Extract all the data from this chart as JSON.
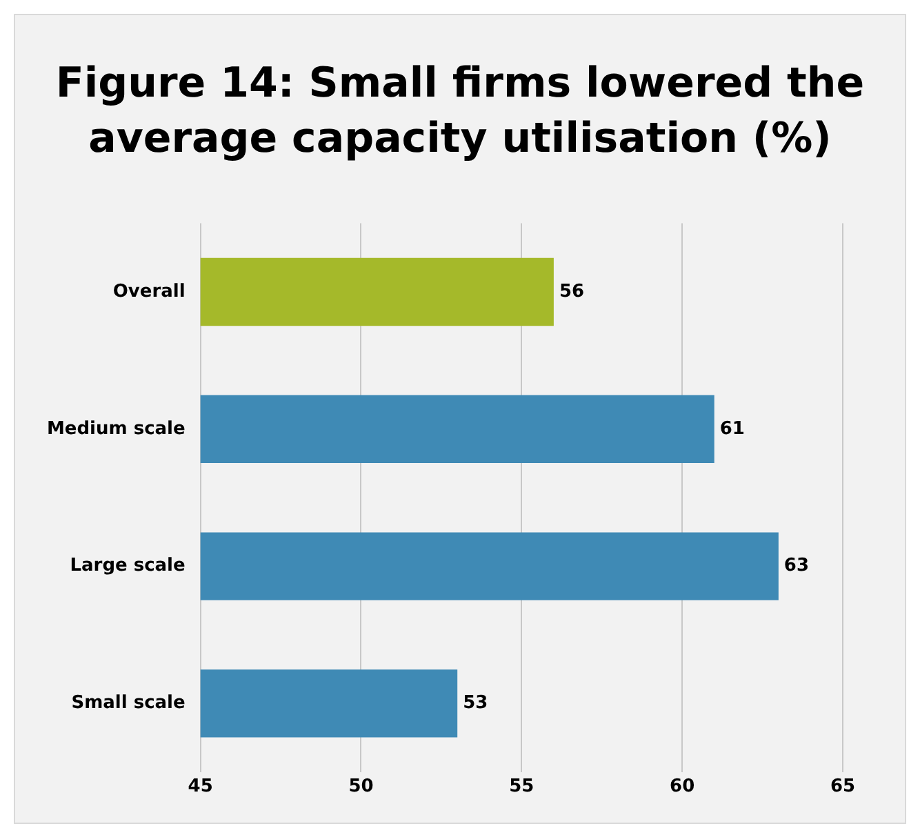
{
  "chart_data": {
    "type": "bar",
    "orientation": "horizontal",
    "title": "Figure 14: Small firms lowered the average capacity utilisation (%)",
    "categories": [
      "Overall",
      "Medium scale",
      "Large scale",
      "Small scale"
    ],
    "values": [
      56,
      61,
      63,
      53
    ],
    "colors": [
      "#a5b92a",
      "#3f8ab5",
      "#3f8ab5",
      "#3f8ab5"
    ],
    "xlim": [
      45,
      65
    ],
    "xticks": [
      45,
      50,
      55,
      60,
      65
    ],
    "grid": "x",
    "data_labels": true,
    "legend": false
  }
}
